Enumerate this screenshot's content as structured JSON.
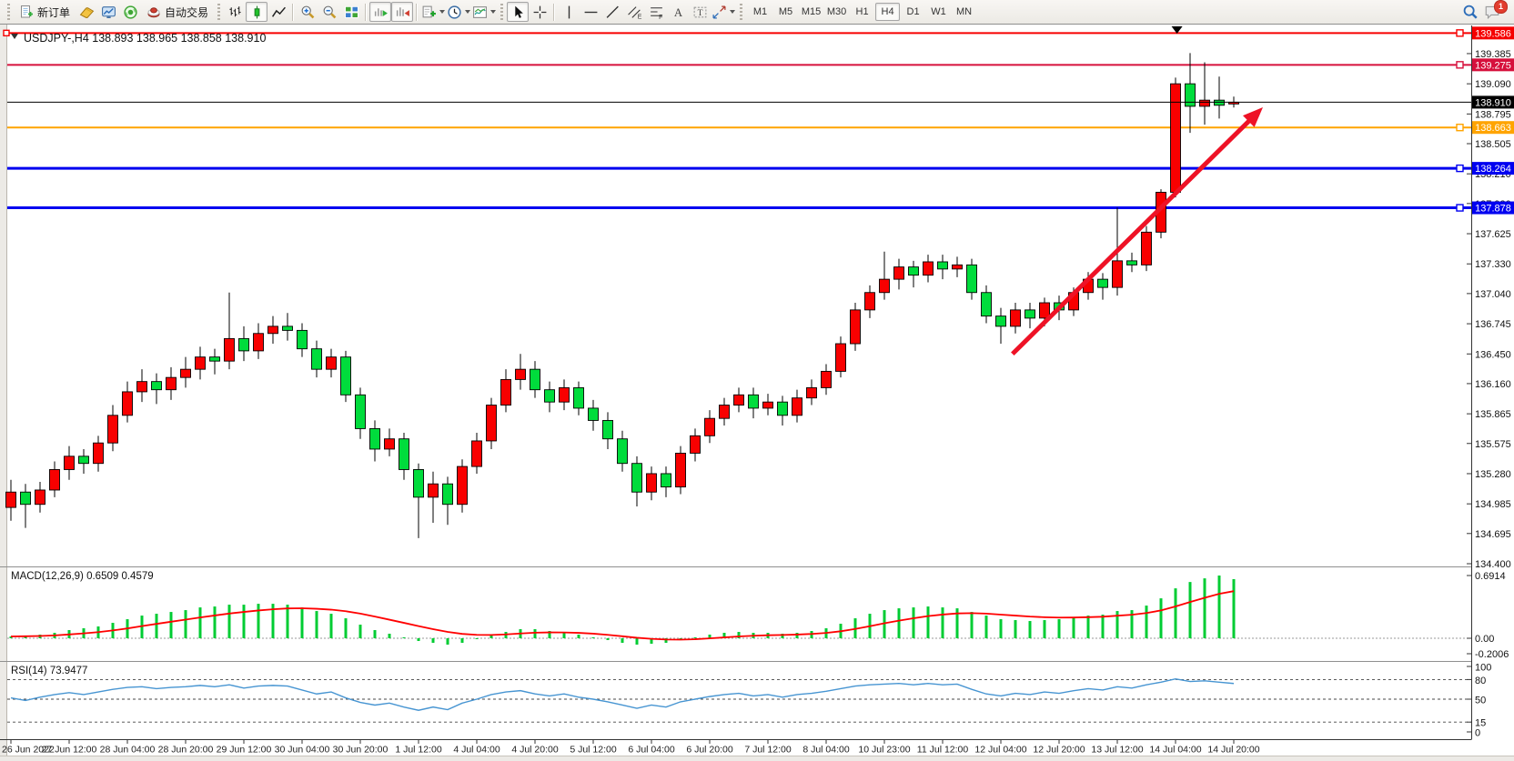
{
  "toolbar": {
    "new_order_label": "新订单",
    "autotrading_label": "自动交易",
    "timeframes": [
      "M1",
      "M5",
      "M15",
      "M30",
      "H1",
      "H4",
      "D1",
      "W1",
      "MN"
    ],
    "active_timeframe": "H4",
    "notification_badge": "1",
    "icon_names": [
      "new-order-icon",
      "gold-book-icon",
      "blue-monitor-icon",
      "green-broadcast-icon",
      "autotrading-icon",
      "bar-chart-icon",
      "candlestick-chart-icon",
      "line-chart-icon",
      "zoom-in-icon",
      "zoom-out-icon",
      "tile-windows-icon",
      "auto-scroll-icon",
      "chart-shift-icon",
      "indicators-icon",
      "periods-icon",
      "templates-icon",
      "cursor-icon",
      "crosshair-icon",
      "vertical-line-icon",
      "horizontal-line-icon",
      "trendline-icon",
      "equidistant-channel-icon",
      "fibonacci-icon",
      "text-icon",
      "text-label-icon",
      "arrows-icon",
      "search-icon",
      "notification-icon"
    ]
  },
  "chart": {
    "title": "USDJPY-,H4  138.893 138.965 138.858 138.910",
    "symbol": "USDJPY-",
    "period": "H4",
    "ohlc_display": {
      "open": "138.893",
      "high": "138.965",
      "low": "138.858",
      "close": "138.910"
    }
  },
  "price_axis": {
    "ticks": [
      "139.385",
      "139.090",
      "138.795",
      "138.505",
      "138.210",
      "137.920",
      "137.625",
      "137.330",
      "137.040",
      "136.745",
      "136.450",
      "136.160",
      "135.865",
      "135.575",
      "135.280",
      "134.985",
      "134.695",
      "134.400"
    ]
  },
  "chart_data": {
    "type": "candlestick",
    "title": "USDJPY-,H4",
    "x_labels": [
      "26 Jun 2022",
      "27 Jun 12:00",
      "28 Jun 04:00",
      "28 Jun 20:00",
      "29 Jun 12:00",
      "30 Jun 04:00",
      "30 Jun 20:00",
      "1 Jul 12:00",
      "4 Jul 04:00",
      "4 Jul 20:00",
      "5 Jul 12:00",
      "6 Jul 04:00",
      "6 Jul 20:00",
      "7 Jul 12:00",
      "8 Jul 04:00",
      "10 Jul 23:00",
      "11 Jul 12:00",
      "12 Jul 04:00",
      "12 Jul 20:00",
      "13 Jul 12:00",
      "14 Jul 04:00",
      "14 Jul 20:00"
    ],
    "x_label_step": 4,
    "ylim": [
      134.4,
      139.66
    ],
    "up_color": "#F80000",
    "down_color": "#00DC3C",
    "ohlc": [
      [
        134.95,
        135.22,
        134.82,
        135.1
      ],
      [
        135.1,
        135.18,
        134.75,
        134.98
      ],
      [
        134.98,
        135.2,
        134.9,
        135.12
      ],
      [
        135.12,
        135.4,
        135.05,
        135.32
      ],
      [
        135.32,
        135.55,
        135.22,
        135.45
      ],
      [
        135.45,
        135.52,
        135.28,
        135.38
      ],
      [
        135.38,
        135.65,
        135.3,
        135.58
      ],
      [
        135.58,
        135.95,
        135.5,
        135.85
      ],
      [
        135.85,
        136.18,
        135.78,
        136.08
      ],
      [
        136.08,
        136.3,
        135.98,
        136.18
      ],
      [
        136.18,
        136.26,
        135.96,
        136.1
      ],
      [
        136.1,
        136.32,
        136.0,
        136.22
      ],
      [
        136.22,
        136.42,
        136.12,
        136.3
      ],
      [
        136.3,
        136.52,
        136.2,
        136.42
      ],
      [
        136.42,
        136.5,
        136.25,
        136.38
      ],
      [
        136.38,
        137.05,
        136.3,
        136.6
      ],
      [
        136.6,
        136.72,
        136.38,
        136.48
      ],
      [
        136.48,
        136.75,
        136.4,
        136.65
      ],
      [
        136.65,
        136.82,
        136.55,
        136.72
      ],
      [
        136.72,
        136.85,
        136.58,
        136.68
      ],
      [
        136.68,
        136.75,
        136.42,
        136.5
      ],
      [
        136.5,
        136.58,
        136.22,
        136.3
      ],
      [
        136.3,
        136.5,
        136.22,
        136.42
      ],
      [
        136.42,
        136.48,
        135.98,
        136.05
      ],
      [
        136.05,
        136.12,
        135.62,
        135.72
      ],
      [
        135.72,
        135.8,
        135.4,
        135.52
      ],
      [
        135.52,
        135.72,
        135.45,
        135.62
      ],
      [
        135.62,
        135.68,
        135.22,
        135.32
      ],
      [
        135.32,
        135.38,
        134.65,
        135.05
      ],
      [
        135.05,
        135.3,
        134.8,
        135.18
      ],
      [
        135.18,
        135.25,
        134.78,
        134.98
      ],
      [
        134.98,
        135.42,
        134.9,
        135.35
      ],
      [
        135.35,
        135.68,
        135.28,
        135.6
      ],
      [
        135.6,
        136.02,
        135.52,
        135.95
      ],
      [
        135.95,
        136.3,
        135.88,
        136.2
      ],
      [
        136.2,
        136.45,
        136.1,
        136.3
      ],
      [
        136.3,
        136.38,
        136.02,
        136.1
      ],
      [
        136.1,
        136.18,
        135.88,
        135.98
      ],
      [
        135.98,
        136.2,
        135.9,
        136.12
      ],
      [
        136.12,
        136.18,
        135.85,
        135.92
      ],
      [
        135.92,
        136.0,
        135.7,
        135.8
      ],
      [
        135.8,
        135.88,
        135.52,
        135.62
      ],
      [
        135.62,
        135.7,
        135.3,
        135.38
      ],
      [
        135.38,
        135.45,
        134.96,
        135.1
      ],
      [
        135.1,
        135.35,
        135.02,
        135.28
      ],
      [
        135.28,
        135.35,
        135.05,
        135.15
      ],
      [
        135.15,
        135.55,
        135.08,
        135.48
      ],
      [
        135.48,
        135.72,
        135.4,
        135.65
      ],
      [
        135.65,
        135.9,
        135.58,
        135.82
      ],
      [
        135.82,
        136.02,
        135.75,
        135.95
      ],
      [
        135.95,
        136.12,
        135.88,
        136.05
      ],
      [
        136.05,
        136.12,
        135.82,
        135.92
      ],
      [
        135.92,
        136.06,
        135.85,
        135.98
      ],
      [
        135.98,
        136.04,
        135.75,
        135.85
      ],
      [
        135.85,
        136.1,
        135.78,
        136.02
      ],
      [
        136.02,
        136.2,
        135.95,
        136.12
      ],
      [
        136.12,
        136.35,
        136.05,
        136.28
      ],
      [
        136.28,
        136.62,
        136.22,
        136.55
      ],
      [
        136.55,
        136.95,
        136.48,
        136.88
      ],
      [
        136.88,
        137.12,
        136.8,
        137.05
      ],
      [
        137.05,
        137.45,
        136.98,
        137.18
      ],
      [
        137.18,
        137.38,
        137.08,
        137.3
      ],
      [
        137.3,
        137.36,
        137.1,
        137.22
      ],
      [
        137.22,
        137.42,
        137.15,
        137.35
      ],
      [
        137.35,
        137.42,
        137.18,
        137.28
      ],
      [
        137.28,
        137.4,
        137.2,
        137.32
      ],
      [
        137.32,
        137.38,
        136.98,
        137.05
      ],
      [
        137.05,
        137.12,
        136.75,
        136.82
      ],
      [
        136.82,
        136.9,
        136.55,
        136.72
      ],
      [
        136.72,
        136.95,
        136.65,
        136.88
      ],
      [
        136.88,
        136.95,
        136.7,
        136.8
      ],
      [
        136.8,
        137.0,
        136.72,
        136.95
      ],
      [
        136.95,
        137.02,
        136.78,
        136.88
      ],
      [
        136.88,
        137.1,
        136.82,
        137.05
      ],
      [
        137.05,
        137.25,
        136.98,
        137.18
      ],
      [
        137.18,
        137.24,
        136.98,
        137.1
      ],
      [
        137.1,
        137.88,
        137.02,
        137.36
      ],
      [
        137.36,
        137.44,
        137.25,
        137.32
      ],
      [
        137.32,
        137.7,
        137.26,
        137.64
      ],
      [
        137.64,
        138.06,
        137.58,
        138.03
      ],
      [
        138.03,
        139.15,
        137.98,
        139.09
      ],
      [
        139.09,
        139.39,
        138.61,
        138.87
      ],
      [
        138.87,
        139.3,
        138.69,
        138.93
      ],
      [
        138.93,
        139.16,
        138.75,
        138.88
      ],
      [
        138.893,
        138.965,
        138.858,
        138.91
      ]
    ],
    "hlines": [
      {
        "price": 139.586,
        "color": "#F60000",
        "width": 2
      },
      {
        "price": 139.275,
        "color": "#D6103C",
        "width": 2
      },
      {
        "price": 138.663,
        "color": "#FFA400",
        "width": 2
      },
      {
        "price": 138.264,
        "color": "#0000F0",
        "width": 3
      },
      {
        "price": 137.878,
        "color": "#0000F0",
        "width": 3
      }
    ],
    "price_line": {
      "price": 138.91,
      "color": "#000000"
    },
    "trend_arrow": {
      "from_bar": 68.8,
      "from_price": 136.45,
      "to_bar": 86.0,
      "to_price": 138.86,
      "color": "#EE1226"
    },
    "top_marker": {
      "bar": 80.1,
      "shape": "triangle-down",
      "color": "#000000"
    },
    "indicators": [
      {
        "type": "macd",
        "label": "MACD(12,26,9) 0.6509 0.4579",
        "params": [
          12,
          26,
          9
        ],
        "main_last": 0.6509,
        "signal_last": 0.4579,
        "yticks": [
          "0.6914",
          "0.00",
          "-0.2006"
        ],
        "histogram_color": "#00CC33",
        "signal_color": "#FF0000",
        "signal_method": "ema9_of_histogram",
        "histogram": [
          0.02,
          0.03,
          0.04,
          0.06,
          0.09,
          0.11,
          0.13,
          0.17,
          0.21,
          0.25,
          0.27,
          0.29,
          0.31,
          0.34,
          0.35,
          0.37,
          0.37,
          0.38,
          0.38,
          0.37,
          0.34,
          0.3,
          0.27,
          0.22,
          0.15,
          0.09,
          0.05,
          0.01,
          -0.03,
          -0.05,
          -0.07,
          -0.05,
          -0.01,
          0.03,
          0.07,
          0.1,
          0.1,
          0.08,
          0.06,
          0.04,
          0.01,
          -0.02,
          -0.05,
          -0.07,
          -0.06,
          -0.05,
          -0.02,
          0.01,
          0.04,
          0.06,
          0.07,
          0.06,
          0.06,
          0.05,
          0.06,
          0.08,
          0.11,
          0.16,
          0.22,
          0.27,
          0.31,
          0.33,
          0.34,
          0.35,
          0.34,
          0.33,
          0.29,
          0.25,
          0.21,
          0.2,
          0.19,
          0.2,
          0.21,
          0.23,
          0.25,
          0.26,
          0.3,
          0.31,
          0.36,
          0.44,
          0.55,
          0.62,
          0.66,
          0.6914,
          0.6509
        ]
      },
      {
        "type": "rsi",
        "label": "RSI(14) 73.9477",
        "period": 14,
        "last": 73.9477,
        "levels": [
          80,
          50,
          15
        ],
        "axis_labels": [
          "100",
          "80",
          "50",
          "15",
          "0"
        ],
        "color": "#4795D2",
        "values": [
          52,
          48,
          53,
          57,
          60,
          57,
          61,
          65,
          68,
          69,
          66,
          68,
          69,
          71,
          69,
          72,
          67,
          70,
          71,
          70,
          64,
          58,
          61,
          52,
          45,
          41,
          44,
          38,
          33,
          38,
          34,
          44,
          50,
          57,
          61,
          63,
          58,
          55,
          58,
          53,
          50,
          46,
          41,
          36,
          41,
          38,
          46,
          50,
          54,
          57,
          59,
          55,
          57,
          53,
          57,
          59,
          62,
          66,
          70,
          72,
          73,
          74,
          72,
          74,
          72,
          73,
          65,
          58,
          55,
          59,
          57,
          61,
          59,
          63,
          66,
          64,
          69,
          67,
          72,
          76,
          81,
          77,
          78,
          76,
          73.9477
        ]
      }
    ]
  }
}
